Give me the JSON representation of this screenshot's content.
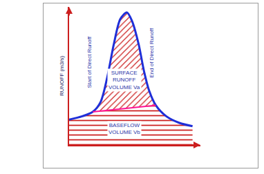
{
  "chart_data": {
    "type": "line",
    "y_label": "RUNOFF (m3/s)",
    "xlim": [
      0,
      10
    ],
    "ylim": [
      0,
      12.5
    ],
    "tick_labels": false,
    "grid": false,
    "color": "#cc1f1f",
    "series": [
      {
        "x": [
          0,
          1,
          1.8,
          2.4,
          2.9,
          3.4,
          3.9,
          4.4,
          4.8,
          5.3,
          5.7,
          6.1,
          6.6,
          7.4,
          8.4,
          9.4
        ],
        "values": [
          2.3,
          2.6,
          3.0,
          3.9,
          6.1,
          9.1,
          11.4,
          12.0,
          11.2,
          9.1,
          6.7,
          4.9,
          3.6,
          2.6,
          2.0,
          1.7
        ],
        "color": "#1f2fd8"
      },
      {
        "x": [
          1.8,
          6.6
        ],
        "values": [
          3.0,
          3.6
        ],
        "color": "#ff1493"
      }
    ],
    "annotations": {
      "start": "Start of Direct Runoff",
      "end": "End of Direct Runoff",
      "surface": [
        "SURFACE",
        "RUNOFF",
        "VOLUME Va"
      ],
      "baseflow": [
        "BASEFLOW",
        "VOLUME Vb"
      ]
    }
  }
}
